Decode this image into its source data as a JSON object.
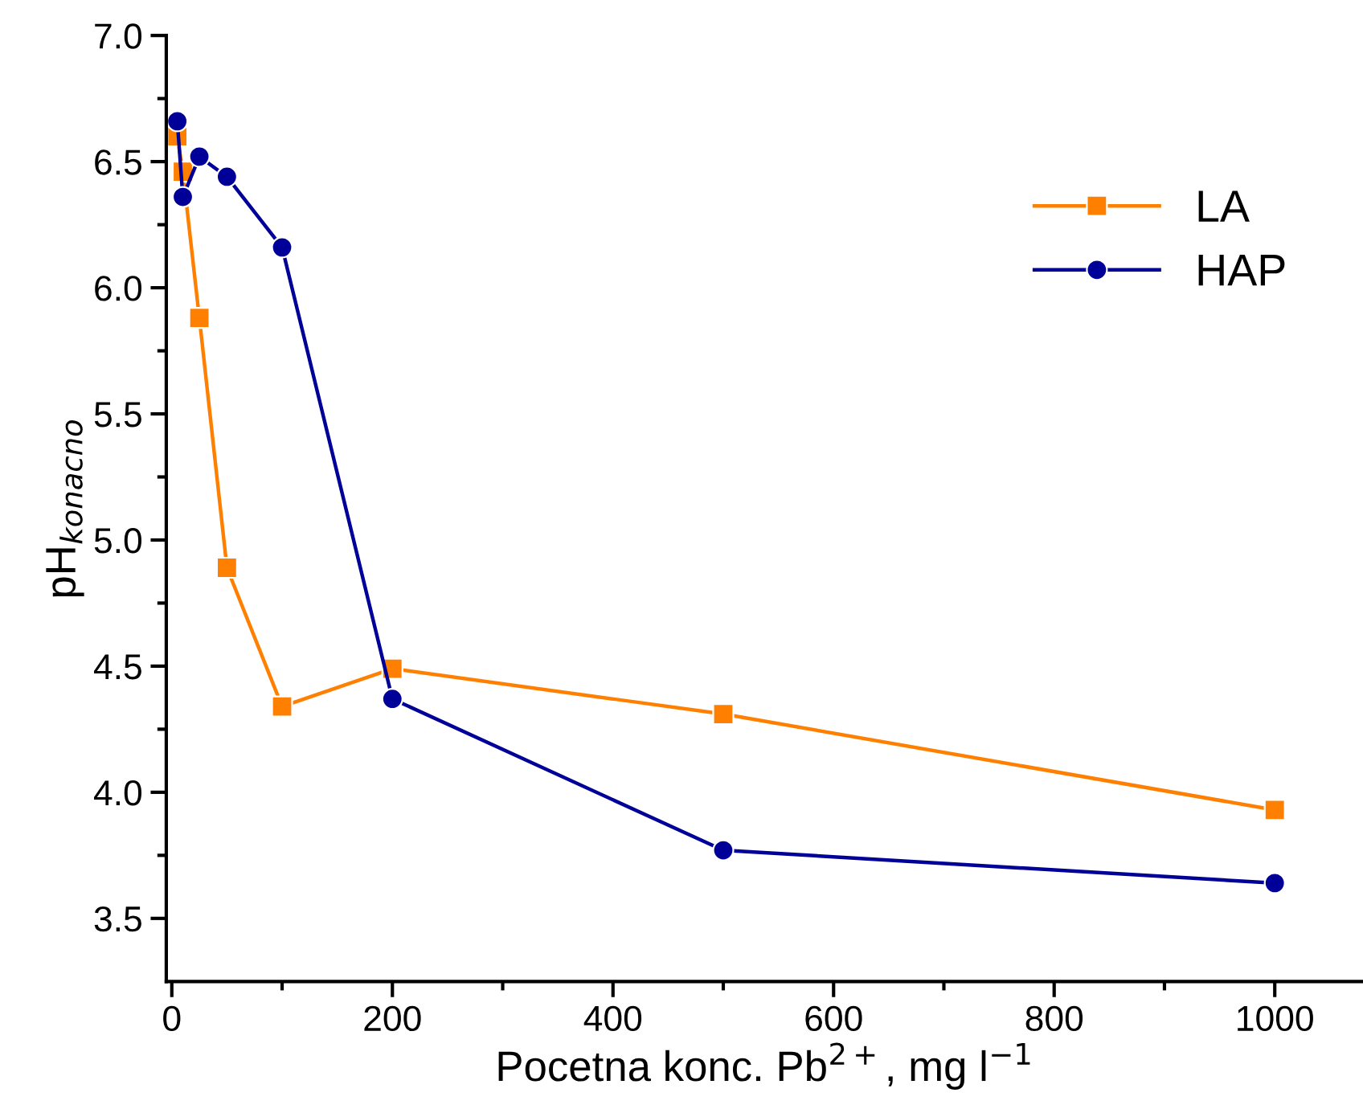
{
  "chart_data": {
    "type": "line",
    "xlabel": "Pocetna konc. Pb$^{2+}$, mg l$^{−1}$",
    "ylabel": "pH$_{konacno}$",
    "x": [
      5,
      10,
      25,
      50,
      100,
      200,
      500,
      1000
    ],
    "series": [
      {
        "name": "LA",
        "color": "#ff8000",
        "marker": "square",
        "values": [
          6.6,
          6.46,
          5.88,
          4.89,
          4.34,
          4.49,
          4.31,
          3.93
        ]
      },
      {
        "name": "HAP",
        "color": "#000099",
        "marker": "circle",
        "values": [
          6.66,
          6.36,
          6.52,
          6.44,
          6.16,
          4.37,
          3.77,
          3.64
        ]
      }
    ],
    "xlim": [
      -5,
      1080
    ],
    "ylim": [
      3.25,
      7.0
    ],
    "xticks": [
      0,
      200,
      400,
      600,
      800,
      1000
    ],
    "yticks": [
      {
        "value": 3.5,
        "label": "3.5"
      },
      {
        "value": 4.0,
        "label": "4.0"
      },
      {
        "value": 4.5,
        "label": "4.5"
      },
      {
        "value": 5.0,
        "label": "5.0"
      },
      {
        "value": 5.5,
        "label": "5.5"
      },
      {
        "value": 6.0,
        "label": "6.0"
      },
      {
        "value": 6.5,
        "label": "6.5"
      },
      {
        "value": 7.0,
        "label": "7.0"
      }
    ],
    "grid": false,
    "legend": "top right",
    "line_style": "solid"
  }
}
